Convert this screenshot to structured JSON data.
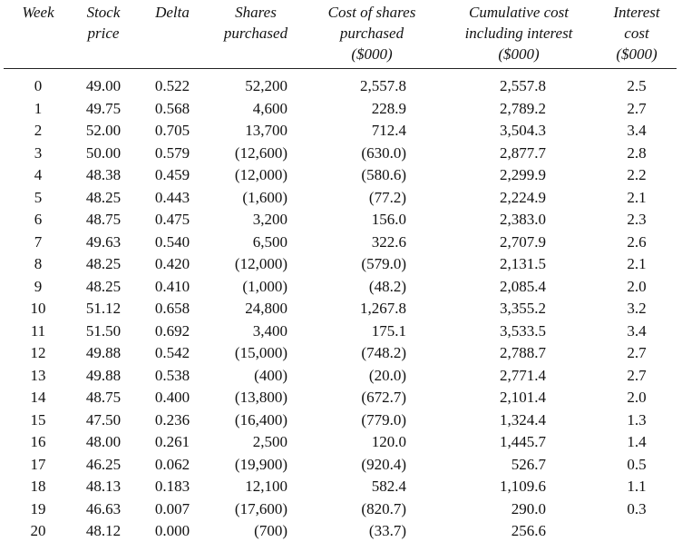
{
  "headers": {
    "week": "Week",
    "price": "Stock\nprice",
    "delta": "Delta",
    "shares": "Shares\npurchased",
    "cost": "Cost of shares\npurchased\n($000)",
    "cumulative": "Cumulative cost\nincluding interest\n($000)",
    "interest": "Interest\ncost\n($000)"
  },
  "rows": [
    {
      "week": "0",
      "price": "49.00",
      "delta": "0.522",
      "shares": "52,200",
      "cost": "2,557.8",
      "cumulative": "2,557.8",
      "interest": "2.5"
    },
    {
      "week": "1",
      "price": "49.75",
      "delta": "0.568",
      "shares": "4,600",
      "cost": "228.9",
      "cumulative": "2,789.2",
      "interest": "2.7"
    },
    {
      "week": "2",
      "price": "52.00",
      "delta": "0.705",
      "shares": "13,700",
      "cost": "712.4",
      "cumulative": "3,504.3",
      "interest": "3.4"
    },
    {
      "week": "3",
      "price": "50.00",
      "delta": "0.579",
      "shares": "(12,600)",
      "cost": "(630.0)",
      "cumulative": "2,877.7",
      "interest": "2.8"
    },
    {
      "week": "4",
      "price": "48.38",
      "delta": "0.459",
      "shares": "(12,000)",
      "cost": "(580.6)",
      "cumulative": "2,299.9",
      "interest": "2.2"
    },
    {
      "week": "5",
      "price": "48.25",
      "delta": "0.443",
      "shares": "(1,600)",
      "cost": "(77.2)",
      "cumulative": "2,224.9",
      "interest": "2.1"
    },
    {
      "week": "6",
      "price": "48.75",
      "delta": "0.475",
      "shares": "3,200",
      "cost": "156.0",
      "cumulative": "2,383.0",
      "interest": "2.3"
    },
    {
      "week": "7",
      "price": "49.63",
      "delta": "0.540",
      "shares": "6,500",
      "cost": "322.6",
      "cumulative": "2,707.9",
      "interest": "2.6"
    },
    {
      "week": "8",
      "price": "48.25",
      "delta": "0.420",
      "shares": "(12,000)",
      "cost": "(579.0)",
      "cumulative": "2,131.5",
      "interest": "2.1"
    },
    {
      "week": "9",
      "price": "48.25",
      "delta": "0.410",
      "shares": "(1,000)",
      "cost": "(48.2)",
      "cumulative": "2,085.4",
      "interest": "2.0"
    },
    {
      "week": "10",
      "price": "51.12",
      "delta": "0.658",
      "shares": "24,800",
      "cost": "1,267.8",
      "cumulative": "3,355.2",
      "interest": "3.2"
    },
    {
      "week": "11",
      "price": "51.50",
      "delta": "0.692",
      "shares": "3,400",
      "cost": "175.1",
      "cumulative": "3,533.5",
      "interest": "3.4"
    },
    {
      "week": "12",
      "price": "49.88",
      "delta": "0.542",
      "shares": "(15,000)",
      "cost": "(748.2)",
      "cumulative": "2,788.7",
      "interest": "2.7"
    },
    {
      "week": "13",
      "price": "49.88",
      "delta": "0.538",
      "shares": "(400)",
      "cost": "(20.0)",
      "cumulative": "2,771.4",
      "interest": "2.7"
    },
    {
      "week": "14",
      "price": "48.75",
      "delta": "0.400",
      "shares": "(13,800)",
      "cost": "(672.7)",
      "cumulative": "2,101.4",
      "interest": "2.0"
    },
    {
      "week": "15",
      "price": "47.50",
      "delta": "0.236",
      "shares": "(16,400)",
      "cost": "(779.0)",
      "cumulative": "1,324.4",
      "interest": "1.3"
    },
    {
      "week": "16",
      "price": "48.00",
      "delta": "0.261",
      "shares": "2,500",
      "cost": "120.0",
      "cumulative": "1,445.7",
      "interest": "1.4"
    },
    {
      "week": "17",
      "price": "46.25",
      "delta": "0.062",
      "shares": "(19,900)",
      "cost": "(920.4)",
      "cumulative": "526.7",
      "interest": "0.5"
    },
    {
      "week": "18",
      "price": "48.13",
      "delta": "0.183",
      "shares": "12,100",
      "cost": "582.4",
      "cumulative": "1,109.6",
      "interest": "1.1"
    },
    {
      "week": "19",
      "price": "46.63",
      "delta": "0.007",
      "shares": "(17,600)",
      "cost": "(820.7)",
      "cumulative": "290.0",
      "interest": "0.3"
    },
    {
      "week": "20",
      "price": "48.12",
      "delta": "0.000",
      "shares": "(700)",
      "cost": "(33.7)",
      "cumulative": "256.6",
      "interest": ""
    }
  ]
}
